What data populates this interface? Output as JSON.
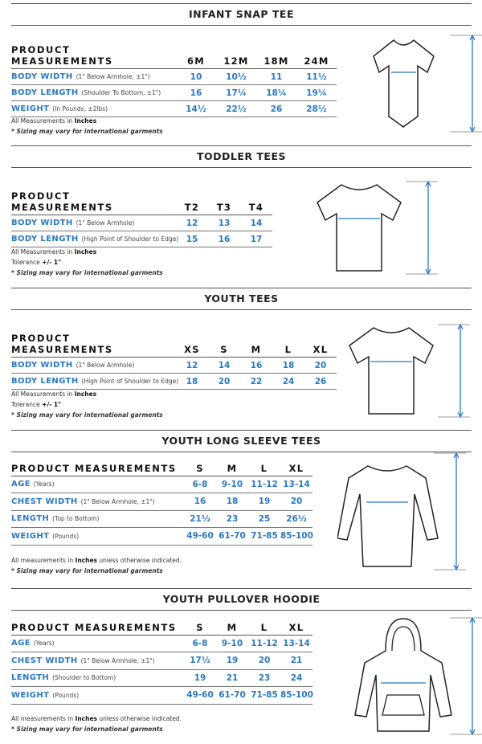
{
  "colors": {
    "accent": "#2a78c2",
    "rule": "#555555"
  },
  "sections": [
    {
      "title": "INFANT SNAP TEE",
      "header": "PRODUCT MEASUREMENTS",
      "sizes": [
        "6M",
        "12M",
        "18M",
        "24M"
      ],
      "rows": [
        {
          "label": "BODY WIDTH",
          "sub": "(1\" Below Armhole, ±1\")",
          "values": [
            "10",
            "10½",
            "11",
            "11½"
          ]
        },
        {
          "label": "BODY LENGTH",
          "sub": "(Shoulder To Bottom, ±1\")",
          "values": [
            "16",
            "17¼",
            "18¼",
            "19¼"
          ]
        },
        {
          "label": "WEIGHT",
          "sub": "(In Pounds, ±2lbs)",
          "values": [
            "14½",
            "22½",
            "26",
            "28½"
          ]
        }
      ],
      "notes": [
        {
          "pre": "All Measurements in ",
          "bold": "Inches",
          "post": ""
        },
        {
          "italic": "* Sizing may vary for international garments"
        }
      ],
      "garment": "onesie-icon"
    },
    {
      "title": "TODDLER TEES",
      "header": "PRODUCT MEASUREMENTS",
      "sizes": [
        "T2",
        "T3",
        "T4"
      ],
      "rows": [
        {
          "label": "BODY WIDTH",
          "sub": "(1\" Below Armhole)",
          "values": [
            "12",
            "13",
            "14"
          ]
        },
        {
          "label": "BODY LENGTH",
          "sub": "(High Point of Shoulder to Edge)",
          "values": [
            "15",
            "16",
            "17"
          ]
        }
      ],
      "notes": [
        {
          "pre": "All Measurements in ",
          "bold": "Inches",
          "post": ""
        },
        {
          "pre": "Tolerance ",
          "bold": "+/- 1\"",
          "post": ""
        },
        {
          "italic": "* Sizing may vary for international garments"
        }
      ],
      "garment": "tshirt-icon"
    },
    {
      "title": "YOUTH TEES",
      "header": "PRODUCT MEASUREMENTS",
      "sizes": [
        "XS",
        "S",
        "M",
        "L",
        "XL"
      ],
      "rows": [
        {
          "label": "BODY WIDTH",
          "sub": "(1\" Below Armhole)",
          "values": [
            "12",
            "14",
            "16",
            "18",
            "20"
          ]
        },
        {
          "label": "BODY LENGTH",
          "sub": "(High Point of Shoulder to Edge)",
          "values": [
            "18",
            "20",
            "22",
            "24",
            "26"
          ]
        }
      ],
      "notes": [
        {
          "pre": "All Measurements in ",
          "bold": "Inches",
          "post": ""
        },
        {
          "pre": "Tolerance ",
          "bold": "+/- 1\"",
          "post": ""
        },
        {
          "italic": "* Sizing may vary for international garments"
        }
      ],
      "garment": "tshirt-icon"
    },
    {
      "title": "YOUTH LONG SLEEVE TEES",
      "header": "PRODUCT MEASUREMENTS",
      "sizes": [
        "S",
        "M",
        "L",
        "XL"
      ],
      "rows": [
        {
          "label": "AGE",
          "sub": "(Years)",
          "values": [
            "6-8",
            "9-10",
            "11-12",
            "13-14"
          ]
        },
        {
          "label": "CHEST WIDTH",
          "sub": "(1\" Below Armhole, ±1\")",
          "values": [
            "16",
            "18",
            "19",
            "20"
          ]
        },
        {
          "label": "LENGTH",
          "sub": "(Top to Bottom)",
          "values": [
            "21½",
            "23",
            "25",
            "26½"
          ]
        },
        {
          "label": "WEIGHT",
          "sub": "(Pounds)",
          "values": [
            "49-60",
            "61-70",
            "71-85",
            "85-100"
          ]
        }
      ],
      "notes": [
        {
          "pre": "All measurements in ",
          "bold": "Inches",
          "post": " unless otherwise indicated."
        },
        {
          "italic": "* Sizing may vary for international garments"
        }
      ],
      "garment": "long-sleeve-icon"
    },
    {
      "title": "YOUTH PULLOVER HOODIE",
      "header": "PRODUCT MEASUREMENTS",
      "sizes": [
        "S",
        "M",
        "L",
        "XL"
      ],
      "rows": [
        {
          "label": "AGE",
          "sub": "(Years)",
          "values": [
            "6-8",
            "9-10",
            "11-12",
            "13-14"
          ]
        },
        {
          "label": "CHEST WIDTH",
          "sub": "(1\" Below Armhole, ±1\")",
          "values": [
            "17½",
            "19",
            "20",
            "21"
          ]
        },
        {
          "label": "LENGTH",
          "sub": "(Shoulder to Bottom)",
          "values": [
            "19",
            "21",
            "23",
            "24"
          ]
        },
        {
          "label": "WEIGHT",
          "sub": "(Pounds)",
          "values": [
            "49-60",
            "61-70",
            "71-85",
            "85-100"
          ]
        }
      ],
      "notes": [
        {
          "pre": "All measurements in ",
          "bold": "Inches",
          "post": " unless otherwise indicated."
        },
        {
          "italic": "* Sizing may vary for international garments"
        }
      ],
      "garment": "hoodie-icon"
    }
  ]
}
